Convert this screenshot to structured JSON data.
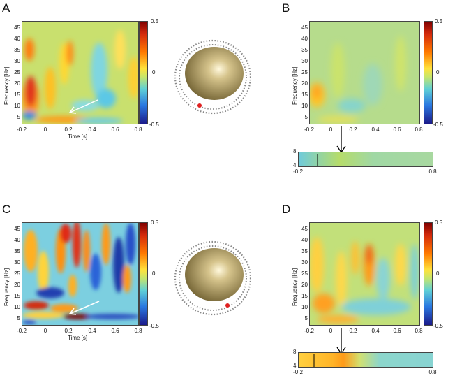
{
  "panel_labels": {
    "a": "A",
    "b": "B",
    "c": "C",
    "d": "D"
  },
  "axes": {
    "ylabel": "Frequency [Hz]",
    "xlabel": "Time [s]",
    "y_ticks": [
      "45",
      "40",
      "35",
      "30",
      "25",
      "20",
      "15",
      "10",
      "5"
    ],
    "x_ticks": [
      "-0.2",
      "0",
      "0.2",
      "0.4",
      "0.6",
      "0.8"
    ]
  },
  "colorbar": {
    "max": "0.5",
    "mid": "0",
    "min": "-0.5"
  },
  "strip": {
    "y_ticks": [
      "8",
      "4"
    ],
    "x_ticks": [
      "-0.2",
      "0.8"
    ]
  },
  "colors": {
    "electrode_dot": "#e02020",
    "head": "#c8b47a",
    "arrow": "#ffffff"
  }
}
